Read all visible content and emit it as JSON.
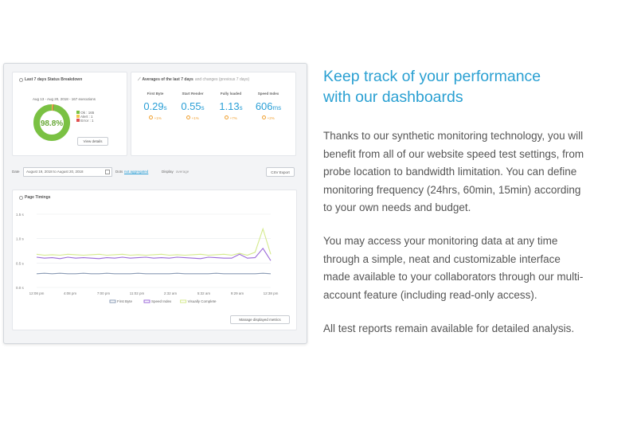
{
  "status_card": {
    "title": "Last 7 days Status Breakdown",
    "range_line": "Aug 13 - Aug 20, 2018 - 167 executions",
    "donut_value": "98.8%",
    "legend": [
      {
        "label": "Ok : 165",
        "color": "#7ac143"
      },
      {
        "label": "Alert : 1",
        "color": "#f2c94c"
      },
      {
        "label": "Error : 1",
        "color": "#e05050"
      }
    ],
    "view_details": "View details"
  },
  "averages_card": {
    "title": "Averages of the last 7 days",
    "title_sub": "and changes (previous 7 days)",
    "metrics": [
      {
        "label": "First Byte",
        "value": "0.29",
        "unit": "s",
        "change": "+1%"
      },
      {
        "label": "Start Render",
        "value": "0.55",
        "unit": "s",
        "change": "+1%"
      },
      {
        "label": "Fully loaded",
        "value": "1.13",
        "unit": "s",
        "change": "+7%"
      },
      {
        "label": "Speed Index",
        "value": "606",
        "unit": "ms",
        "change": "+2%"
      }
    ]
  },
  "filter_bar": {
    "date_label": "Date",
    "date_value": "August 19, 2018 to August 20, 2018",
    "dots_label": "Dots",
    "dots_value": "not aggregated",
    "display_label": "Display",
    "display_value": "average",
    "csv_button": "CSV Export"
  },
  "timings_card": {
    "title": "Page Timings",
    "manage_button": "Manage displayed metrics"
  },
  "chart_data": {
    "type": "line",
    "title": "Page Timings",
    "y_ticks": [
      "1.5 s",
      "1.0 s",
      "0.5 s",
      "0.0 s"
    ],
    "ylim": [
      0,
      1.5
    ],
    "x_ticks": [
      "12:08 pm",
      "4:08 pm",
      "7:00 pm",
      "11:02 pm",
      "2:32 am",
      "5:32 am",
      "9:29 am",
      "12:38 pm"
    ],
    "series": [
      {
        "name": "First Byte",
        "color": "#8a9bb5",
        "values": [
          0.28,
          0.29,
          0.28,
          0.29,
          0.28,
          0.28,
          0.29,
          0.28,
          0.28,
          0.29,
          0.28,
          0.28,
          0.28,
          0.29,
          0.28,
          0.28,
          0.28,
          0.28,
          0.29,
          0.28,
          0.28,
          0.28,
          0.28,
          0.29,
          0.28,
          0.28,
          0.28,
          0.28,
          0.28,
          0.29,
          0.28
        ]
      },
      {
        "name": "Speed Index",
        "color": "#9b6ad8",
        "values": [
          0.62,
          0.6,
          0.61,
          0.59,
          0.62,
          0.6,
          0.61,
          0.6,
          0.59,
          0.61,
          0.6,
          0.62,
          0.6,
          0.61,
          0.62,
          0.6,
          0.61,
          0.6,
          0.62,
          0.61,
          0.6,
          0.59,
          0.62,
          0.61,
          0.6,
          0.6,
          0.68,
          0.6,
          0.61,
          0.8,
          0.55
        ]
      },
      {
        "name": "Visually Complete",
        "color": "#d4ea8c",
        "values": [
          0.68,
          0.66,
          0.67,
          0.66,
          0.68,
          0.67,
          0.66,
          0.67,
          0.68,
          0.66,
          0.67,
          0.68,
          0.66,
          0.67,
          0.66,
          0.67,
          0.68,
          0.66,
          0.67,
          0.66,
          0.67,
          0.68,
          0.66,
          0.67,
          0.68,
          0.66,
          0.7,
          0.66,
          0.72,
          1.2,
          0.68
        ]
      }
    ]
  },
  "right_panel": {
    "heading_line1": "Keep track of your performance",
    "heading_line2": "with our dashboards",
    "p1": [
      "Thanks to our synthetic monitoring technology, you will",
      "benefit from all of our website speed test settings, from",
      "probe location to bandwidth limitation. You can define",
      "monitoring frequency (24hrs, 60min, 15min) according",
      "to your own needs and budget."
    ],
    "p2": [
      "You may access your monitoring data at any time",
      "through a simple, neat and customizable interface",
      "made available to your collaborators through our multi-",
      "account feature (including read-only access)."
    ],
    "p3": [
      "All test reports remain available for detailed analysis."
    ]
  }
}
